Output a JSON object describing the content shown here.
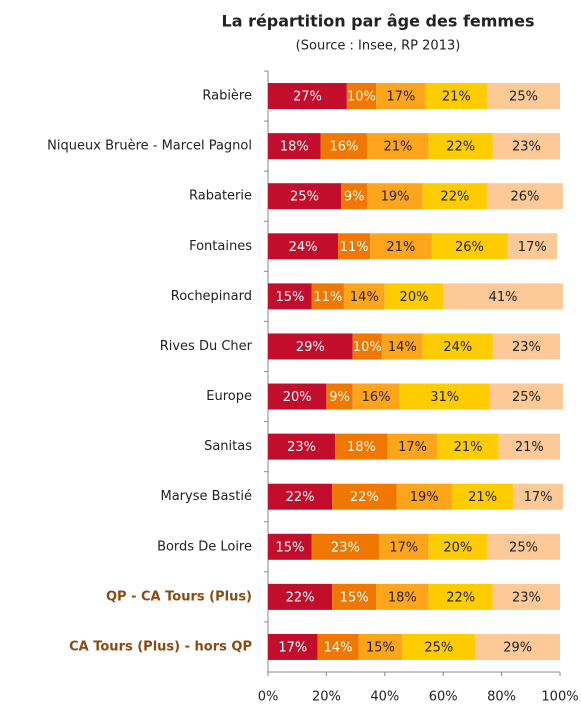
{
  "chart_data": {
    "type": "stacked_bar_horizontal",
    "title": "La répartition par âge des femmes",
    "subtitle": "(Source : Insee, RP 2013)",
    "categories": [
      "Rabière",
      "Niqueux Bruère - Marcel Pagnol",
      "Rabaterie",
      "Fontaines",
      "Rochepinard",
      "Rives Du Cher",
      "Europe",
      "Sanitas",
      "Maryse Bastié",
      "Bords De Loire",
      "QP - CA Tours (Plus)",
      "CA Tours (Plus) - hors QP"
    ],
    "category_label_colors": [
      "#222222",
      "#222222",
      "#222222",
      "#222222",
      "#222222",
      "#222222",
      "#222222",
      "#222222",
      "#222222",
      "#222222",
      "#8b4a12",
      "#8b4a12"
    ],
    "series": [
      {
        "color": "#c20e2c",
        "label_color": "#ffffff",
        "values": [
          27,
          18,
          25,
          24,
          15,
          29,
          20,
          23,
          22,
          15,
          22,
          17
        ],
        "value_labels": [
          "27%",
          "18%",
          "25%",
          "24%",
          "15%",
          "29%",
          "20%",
          "23%",
          "22%",
          "15%",
          "22%",
          "17%"
        ]
      },
      {
        "color": "#f07800",
        "label_color": "#ffffff",
        "values": [
          10,
          16,
          9,
          11,
          11,
          10,
          9,
          18,
          22,
          23,
          15,
          14
        ],
        "value_labels": [
          "10%",
          "16%",
          "9%",
          "11%",
          "11%",
          "10%",
          "9%",
          "18%",
          "22%",
          "23%",
          "15%",
          "14%"
        ]
      },
      {
        "color": "#ffa51c",
        "label_color": "#222222",
        "values": [
          17,
          21,
          19,
          21,
          14,
          14,
          16,
          17,
          19,
          17,
          18,
          15
        ],
        "value_labels": [
          "17%",
          "21%",
          "19%",
          "21%",
          "14%",
          "14%",
          "16%",
          "17%",
          "19%",
          "17%",
          "18%",
          "15%"
        ]
      },
      {
        "color": "#ffcc00",
        "label_color": "#222222",
        "values": [
          21,
          22,
          22,
          26,
          20,
          24,
          31,
          21,
          21,
          20,
          22,
          25
        ],
        "value_labels": [
          "21%",
          "22%",
          "22%",
          "26%",
          "20%",
          "24%",
          "31%",
          "21%",
          "21%",
          "20%",
          "22%",
          "25%"
        ]
      },
      {
        "color": "#fdc996",
        "label_color": "#222222",
        "values": [
          25,
          23,
          26,
          17,
          41,
          23,
          25,
          21,
          17,
          25,
          23,
          29
        ],
        "value_labels": [
          "25%",
          "23%",
          "26%",
          "17%",
          "41%",
          "23%",
          "25%",
          "21%",
          "17%",
          "25%",
          "23%",
          "29%"
        ]
      }
    ],
    "xlim": [
      0,
      100
    ],
    "xticks": [
      {
        "value": 0,
        "label": "0%"
      },
      {
        "value": 20,
        "label": "20%"
      },
      {
        "value": 40,
        "label": "40%"
      },
      {
        "value": 60,
        "label": "60%"
      },
      {
        "value": 80,
        "label": "80%"
      },
      {
        "value": 100,
        "label": "100%"
      }
    ]
  }
}
